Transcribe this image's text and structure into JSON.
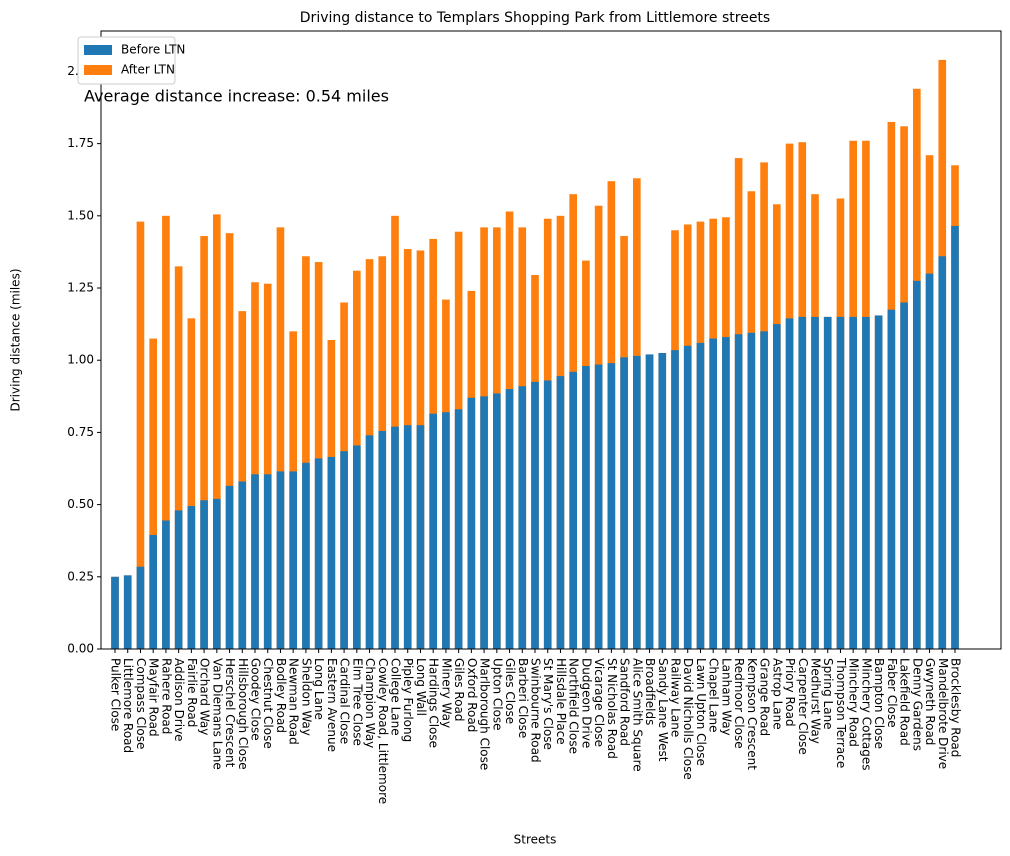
{
  "chart_data": {
    "type": "bar",
    "title": "Driving distance to Templars Shopping Park from Littlemore streets",
    "xlabel": "Streets",
    "ylabel": "Driving distance (miles)",
    "annotation": "Average distance increase: 0.54 miles",
    "legend": "upper left",
    "categories": [
      "Pulker Close",
      "Littlemore Road",
      "Compass Close",
      "Mayfair Road",
      "Rahere Road",
      "Addison Drive",
      "Fairlie Road",
      "Orchard Way",
      "Van Diemans Lane",
      "Herschel Crescent",
      "Hillsborough Close",
      "Goodey Close",
      "Chestnut Close",
      "Bodley Road",
      "Newman Road",
      "Sheldon Way",
      "Long Lane",
      "Eastern Avenue",
      "Cardinal Close",
      "Elm Tree Close",
      "Champion Way",
      "Cowley Road, Littlemore",
      "College Lane",
      "Pipley Furlong",
      "Long Wall",
      "Hardings Close",
      "Minery Way",
      "Giles Road",
      "Oxford Road",
      "Marlborough Close",
      "Upton Close",
      "Giles Close",
      "Barberi Close",
      "Swinbourne Road",
      "St Mary's Close",
      "Hillsdale Place",
      "Northfield Close",
      "Dudgeon Drive",
      "Vicarage Close",
      "St Nicholas Road",
      "Sandford Road",
      "Alice Smith Square",
      "Broadfields",
      "Sandy Lane West",
      "Railway Lane",
      "David Nicholls Close",
      "Lawn Upton Close",
      "Chapel Lane",
      "Lanham Way",
      "Redmoor Close",
      "Kempson Crescent",
      "Grange Road",
      "Astrop Lane",
      "Priory Road",
      "Carpenter Close",
      "Medhurst Way",
      "Spring Lane",
      "Thompson Terrace",
      "Minchery Road",
      "Minchery Cottages",
      "Bampton Close",
      "Faber Close",
      "Lakefield Road",
      "Denny Gardens",
      "Gwyneth Road",
      "Mandelbrote Drive",
      "Brocklesby Road"
    ],
    "series": [
      {
        "name": "Before LTN",
        "color": "#1f77b4",
        "values": [
          0.25,
          0.255,
          0.285,
          0.395,
          0.445,
          0.48,
          0.495,
          0.515,
          0.52,
          0.565,
          0.58,
          0.605,
          0.605,
          0.615,
          0.615,
          0.645,
          0.66,
          0.665,
          0.685,
          0.705,
          0.74,
          0.755,
          0.77,
          0.775,
          0.775,
          0.815,
          0.82,
          0.83,
          0.87,
          0.875,
          0.885,
          0.9,
          0.91,
          0.925,
          0.93,
          0.945,
          0.96,
          0.98,
          0.985,
          0.99,
          1.01,
          1.015,
          1.02,
          1.025,
          1.035,
          1.05,
          1.06,
          1.075,
          1.08,
          1.09,
          1.095,
          1.1,
          1.125,
          1.145,
          1.15,
          1.15,
          1.15,
          1.15,
          1.15,
          1.15,
          1.155,
          1.175,
          1.2,
          1.275,
          1.3,
          1.36,
          1.465
        ]
      },
      {
        "name": "After LTN",
        "color": "#ff7f0e",
        "values": [
          0.25,
          0.255,
          1.48,
          1.075,
          1.5,
          1.325,
          1.145,
          1.43,
          1.505,
          1.44,
          1.17,
          1.27,
          1.265,
          1.46,
          1.1,
          1.36,
          1.34,
          1.07,
          1.2,
          1.31,
          1.35,
          1.36,
          1.5,
          1.385,
          1.38,
          1.42,
          1.21,
          1.445,
          1.24,
          1.46,
          1.46,
          1.515,
          1.46,
          1.295,
          1.49,
          1.5,
          1.575,
          1.345,
          1.535,
          1.62,
          1.43,
          1.63,
          1.02,
          1.025,
          1.45,
          1.47,
          1.48,
          1.49,
          1.495,
          1.7,
          1.585,
          1.685,
          1.54,
          1.75,
          1.755,
          1.575,
          1.15,
          1.56,
          1.76,
          1.76,
          1.155,
          1.825,
          1.81,
          1.94,
          1.71,
          2.04,
          1.675
        ]
      }
    ],
    "ylim": [
      0,
      2.14
    ],
    "yticks": [
      {
        "value": 0,
        "label": "0.00"
      },
      {
        "value": 0.25,
        "label": "0.25"
      },
      {
        "value": 0.5,
        "label": "0.50"
      },
      {
        "value": 0.75,
        "label": "0.75"
      },
      {
        "value": 1,
        "label": "1.00"
      },
      {
        "value": 1.25,
        "label": "1.25"
      },
      {
        "value": 1.5,
        "label": "1.50"
      },
      {
        "value": 1.75,
        "label": "1.75"
      },
      {
        "value": 2,
        "label": "2.00"
      }
    ]
  }
}
